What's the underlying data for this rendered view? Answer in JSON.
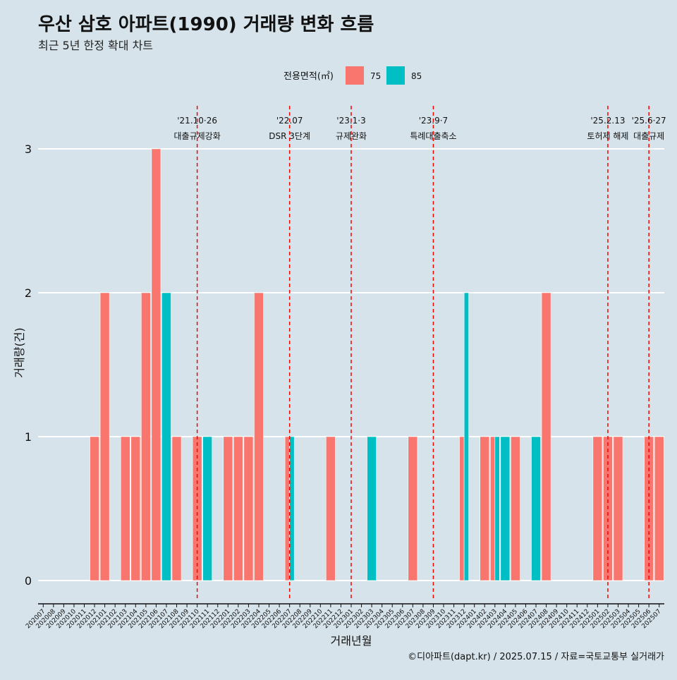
{
  "title": "우산 삼호 아파트(1990) 거래량 변화 흐름",
  "subtitle": "최근 5년 한정 확대 차트",
  "caption": "©디아파트(dapt.kr) / 2025.07.15 / 자료=국토교통부 실거래가",
  "legend": {
    "title": "전용면적(㎡)",
    "items": [
      {
        "label": "75",
        "color": "#F8766D"
      },
      {
        "label": "85",
        "color": "#00BFC4"
      }
    ]
  },
  "chart_data": {
    "type": "bar",
    "xlabel": "거래년월",
    "ylabel": "거래량(건)",
    "ylim": [
      0,
      3
    ],
    "yticks": [
      0,
      1,
      2,
      3
    ],
    "grid": true,
    "legend_position": "top",
    "categories": [
      "202007",
      "202008",
      "202009",
      "202010",
      "202011",
      "202012",
      "202101",
      "202102",
      "202103",
      "202104",
      "202105",
      "202106",
      "202107",
      "202108",
      "202109",
      "202110",
      "202111",
      "202112",
      "202201",
      "202202",
      "202203",
      "202204",
      "202205",
      "202206",
      "202207",
      "202208",
      "202209",
      "202210",
      "202211",
      "202212",
      "202301",
      "202302",
      "202303",
      "202304",
      "202305",
      "202306",
      "202307",
      "202308",
      "202309",
      "202310",
      "202311",
      "202312",
      "202401",
      "202402",
      "202403",
      "202404",
      "202405",
      "202406",
      "202407",
      "202408",
      "202409",
      "202410",
      "202411",
      "202412",
      "202501",
      "202502",
      "202503",
      "202504",
      "202505",
      "202506",
      "202507"
    ],
    "series": [
      {
        "name": "75",
        "color": "#F8766D",
        "values": [
          0,
          0,
          0,
          0,
          0,
          1,
          2,
          0,
          1,
          1,
          2,
          3,
          0,
          1,
          0,
          1,
          0,
          0,
          1,
          1,
          1,
          2,
          0,
          0,
          1,
          0,
          0,
          0,
          1,
          0,
          0,
          0,
          0,
          0,
          0,
          0,
          1,
          0,
          0,
          0,
          0,
          1,
          0,
          1,
          1,
          0,
          1,
          0,
          0,
          2,
          0,
          0,
          0,
          0,
          1,
          1,
          1,
          0,
          0,
          1,
          1
        ]
      },
      {
        "name": "85",
        "color": "#00BFC4",
        "values": [
          0,
          0,
          0,
          0,
          0,
          0,
          0,
          0,
          0,
          0,
          0,
          0,
          2,
          0,
          0,
          0,
          1,
          0,
          0,
          0,
          0,
          0,
          0,
          0,
          1,
          0,
          0,
          0,
          0,
          0,
          0,
          0,
          1,
          0,
          0,
          0,
          0,
          0,
          0,
          0,
          0,
          2,
          0,
          0,
          1,
          1,
          0,
          0,
          1,
          0,
          0,
          0,
          0,
          0,
          0,
          0,
          0,
          0,
          0,
          0,
          0
        ]
      }
    ],
    "events": [
      {
        "date": "'21.10·26",
        "label": "대출규제강화",
        "category": "202110"
      },
      {
        "date": "'22.07",
        "label": "DSR 3단계",
        "category": "202207"
      },
      {
        "date": "'23.1·3",
        "label": "규제완화",
        "category": "202301"
      },
      {
        "date": "'23.9·7",
        "label": "특례대출축소",
        "category": "202309"
      },
      {
        "date": "'25.2.13",
        "label": "토허제 해제",
        "category": "202502"
      },
      {
        "date": "'25.6·27",
        "label": "대출규제",
        "category": "202506"
      }
    ],
    "event_line_color": "#ff0000"
  }
}
